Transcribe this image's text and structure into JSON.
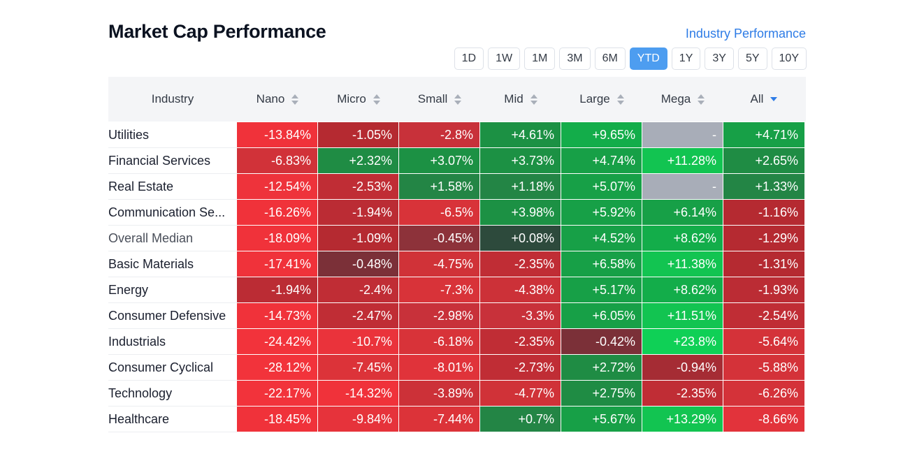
{
  "header": {
    "title": "Market Cap Performance",
    "link_label": "Industry Performance"
  },
  "periods": [
    "1D",
    "1W",
    "1M",
    "3M",
    "6M",
    "YTD",
    "1Y",
    "3Y",
    "5Y",
    "10Y"
  ],
  "active_period": "YTD",
  "columns": [
    "Industry",
    "Nano",
    "Micro",
    "Small",
    "Mid",
    "Large",
    "Mega",
    "All"
  ],
  "sorted_column": "All",
  "colors": {
    "accent": "#2e7ce6",
    "active_button": "#4d9df0",
    "empty": "#a8adb8"
  },
  "rows": [
    {
      "name": "Utilities",
      "values": [
        "-13.84%",
        "-1.05%",
        "-2.8%",
        "+4.61%",
        "+9.65%",
        "-",
        "+4.71%"
      ],
      "colors": [
        "#f0323a",
        "#b52a31",
        "#c8313a",
        "#1c9144",
        "#13ad4a",
        "#a8adb8",
        "#17a047"
      ]
    },
    {
      "name": "Financial Services",
      "values": [
        "-6.83%",
        "+2.32%",
        "+3.07%",
        "+3.73%",
        "+4.74%",
        "+11.28%",
        "+2.65%"
      ],
      "colors": [
        "#d13239",
        "#1f8c44",
        "#1c9144",
        "#1c9144",
        "#17a047",
        "#12c451",
        "#1f8c44"
      ]
    },
    {
      "name": "Real Estate",
      "values": [
        "-12.54%",
        "-2.53%",
        "+1.58%",
        "+1.18%",
        "+5.07%",
        "-",
        "+1.33%"
      ],
      "colors": [
        "#ee333b",
        "#c02d35",
        "#238545",
        "#238545",
        "#17a047",
        "#a8adb8",
        "#238545"
      ]
    },
    {
      "name": "Communication Se...",
      "values": [
        "-16.26%",
        "-1.94%",
        "-6.5%",
        "+3.98%",
        "+5.92%",
        "+6.14%",
        "-1.16%"
      ],
      "colors": [
        "#f0323a",
        "#bb2c34",
        "#d83339",
        "#1c9144",
        "#17a047",
        "#17a047",
        "#b52a31"
      ]
    },
    {
      "name": "Overall Median",
      "values": [
        "-18.09%",
        "-1.09%",
        "-0.45%",
        "+0.08%",
        "+4.52%",
        "+8.62%",
        "-1.29%"
      ],
      "colors": [
        "#f0323a",
        "#b52a31",
        "#8d323a",
        "#2d4a3c",
        "#17a047",
        "#13ad4a",
        "#b52a31"
      ],
      "muted": true
    },
    {
      "name": "Basic Materials",
      "values": [
        "-17.41%",
        "-0.48%",
        "-4.75%",
        "-2.35%",
        "+6.58%",
        "+11.38%",
        "-1.31%"
      ],
      "colors": [
        "#f0323a",
        "#7b3038",
        "#d03238",
        "#c02d35",
        "#17a047",
        "#12c451",
        "#b52a31"
      ]
    },
    {
      "name": "Energy",
      "values": [
        "-1.94%",
        "-2.4%",
        "-7.3%",
        "-4.38%",
        "+5.17%",
        "+8.62%",
        "-1.93%"
      ],
      "colors": [
        "#bb2c34",
        "#c02d35",
        "#d83339",
        "#cc3138",
        "#17a047",
        "#13ad4a",
        "#bb2c34"
      ]
    },
    {
      "name": "Consumer Defensive",
      "values": [
        "-14.73%",
        "-2.47%",
        "-2.98%",
        "-3.3%",
        "+6.05%",
        "+11.51%",
        "-2.54%"
      ],
      "colors": [
        "#f0323a",
        "#c02d35",
        "#c8313a",
        "#c8313a",
        "#17a047",
        "#12c451",
        "#c02d35"
      ]
    },
    {
      "name": "Industrials",
      "values": [
        "-24.42%",
        "-10.7%",
        "-6.18%",
        "-2.35%",
        "-0.42%",
        "+23.8%",
        "-5.64%"
      ],
      "colors": [
        "#f2333b",
        "#ea333b",
        "#d83339",
        "#c02d35",
        "#7b3038",
        "#0fd056",
        "#d43239"
      ]
    },
    {
      "name": "Consumer Cyclical",
      "values": [
        "-28.12%",
        "-7.45%",
        "-8.01%",
        "-2.73%",
        "+2.72%",
        "-0.94%",
        "-5.88%"
      ],
      "colors": [
        "#f2333b",
        "#dc3339",
        "#e0333a",
        "#c02d35",
        "#1f8c44",
        "#a52c34",
        "#d43239"
      ]
    },
    {
      "name": "Technology",
      "values": [
        "-22.17%",
        "-14.32%",
        "-3.89%",
        "-4.77%",
        "+2.75%",
        "-2.35%",
        "-6.26%"
      ],
      "colors": [
        "#f2333b",
        "#f0323a",
        "#cc3138",
        "#d03238",
        "#1f8c44",
        "#c02d35",
        "#d43239"
      ]
    },
    {
      "name": "Healthcare",
      "values": [
        "-18.45%",
        "-9.84%",
        "-7.44%",
        "+0.7%",
        "+5.67%",
        "+13.29%",
        "-8.66%"
      ],
      "colors": [
        "#f0323a",
        "#e6333b",
        "#dc3339",
        "#238545",
        "#17a047",
        "#12c451",
        "#e2333b"
      ]
    }
  ]
}
